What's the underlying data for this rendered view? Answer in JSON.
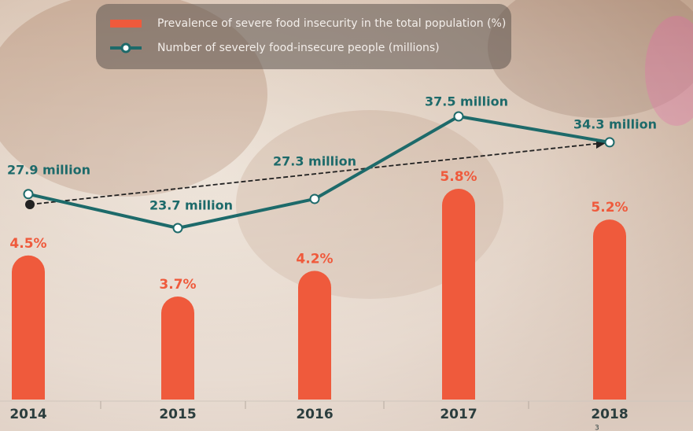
{
  "chart_data": {
    "type": "bar-line",
    "categories": [
      "2014",
      "2015",
      "2016",
      "2017",
      "2018"
    ],
    "series": [
      {
        "name": "Prevalence of severe food insecurity  in the total population (%)",
        "type": "bar",
        "color": "#ef5a3c",
        "values": [
          4.5,
          3.7,
          4.2,
          5.8,
          5.2
        ],
        "value_labels": [
          "4.5%",
          "3.7%",
          "4.2%",
          "5.8%",
          "5.2%"
        ]
      },
      {
        "name": "Number of severely food-insecure people (millions)",
        "type": "line",
        "color": "#1d6a6a",
        "values": [
          27.9,
          23.7,
          27.3,
          37.5,
          34.3
        ],
        "value_labels": [
          "27.9 million",
          "23.7 million",
          "27.3 million",
          "37.5 million",
          "34.3 million"
        ]
      }
    ],
    "footnote": "3"
  }
}
